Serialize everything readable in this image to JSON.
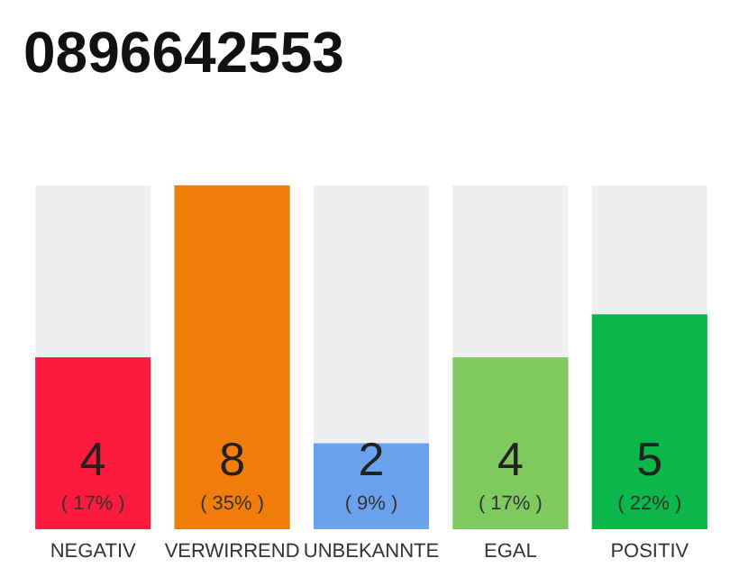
{
  "chart_data": {
    "type": "bar",
    "title": "0896642553",
    "categories": [
      "NEGATIV",
      "VERWIRREND",
      "UNBEKANNTE",
      "EGAL",
      "POSITIV"
    ],
    "values": [
      4,
      8,
      2,
      4,
      5
    ],
    "colors": [
      "#fe1a3c",
      "#f17d0b",
      "#6ba2ee",
      "#7fca5f",
      "#0bb64b"
    ],
    "value_labels": [
      "4\n( 17% )",
      "8\n( 35% )",
      "2\n( 9% )",
      "4\n( 17% )",
      "5\n( 22% )"
    ]
  }
}
